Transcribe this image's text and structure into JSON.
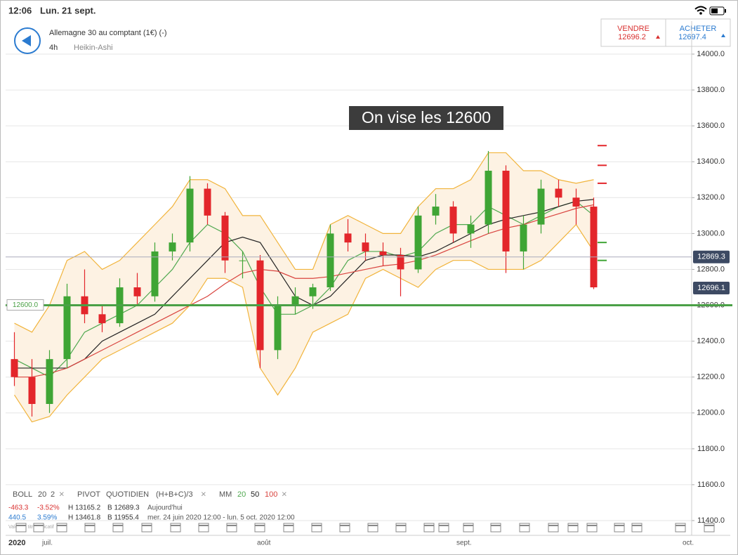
{
  "status_bar": {
    "time": "12:06",
    "date": "Lun. 21 sept."
  },
  "header": {
    "instrument": "Allemagne 30 au comptant (1€) (-)",
    "interval": "4h",
    "chart_style": "Heikin-Ashi"
  },
  "quote": {
    "sell_label": "VENDRE",
    "sell_price": "12696.2",
    "buy_label": "ACHETER",
    "buy_price": "12697.4"
  },
  "chart_data": {
    "type": "candlestick",
    "annotation": "On vise les 12600",
    "ylim": [
      11400,
      14000
    ],
    "yticks": [
      {
        "value": 11400,
        "label": "11400.0"
      },
      {
        "value": 11600,
        "label": "11600.0"
      },
      {
        "value": 11800,
        "label": "11800.0"
      },
      {
        "value": 12000,
        "label": "12000.0"
      },
      {
        "value": 12200,
        "label": "12200.0"
      },
      {
        "value": 12400,
        "label": "12400.0"
      },
      {
        "value": 12600,
        "label": "12600.0"
      },
      {
        "value": 12800,
        "label": "12800.0"
      },
      {
        "value": 13000,
        "label": "13000.0"
      },
      {
        "value": 13200,
        "label": "13200.0"
      },
      {
        "value": 13400,
        "label": "13400.0"
      },
      {
        "value": 13600,
        "label": "13600.0"
      },
      {
        "value": 13800,
        "label": "13800.0"
      },
      {
        "value": 14000,
        "label": "14000.0"
      }
    ],
    "grid": true,
    "up_color": "#3fa535",
    "down_color": "#e3262b",
    "open": [
      12300,
      12200,
      12050,
      12300,
      12650,
      12550,
      12500,
      12700,
      12650,
      12900,
      12950,
      13250,
      13100,
      12850,
      12850,
      12350,
      12600,
      12650,
      12700,
      13000,
      12950,
      12900,
      12880,
      12800,
      13100,
      13150,
      13000,
      13050,
      13350,
      12900,
      13050,
      13250,
      13200,
      13150
    ],
    "high": [
      12450,
      12300,
      12350,
      12720,
      12800,
      12600,
      12750,
      12780,
      12950,
      13000,
      13320,
      13280,
      13120,
      12900,
      12880,
      12650,
      12700,
      12720,
      13050,
      13080,
      13000,
      12950,
      12920,
      13150,
      13220,
      13180,
      13100,
      13460,
      13380,
      13100,
      13300,
      13300,
      13250,
      13200
    ],
    "low": [
      12150,
      11980,
      12000,
      12250,
      12500,
      12450,
      12480,
      12600,
      12620,
      12850,
      12900,
      13050,
      12780,
      12750,
      12250,
      12300,
      12550,
      12580,
      12680,
      12900,
      12850,
      12820,
      12650,
      12780,
      13050,
      12950,
      12920,
      13000,
      12780,
      12800,
      13000,
      13150,
      13050,
      12690
    ],
    "close": [
      12200,
      12050,
      12300,
      12650,
      12550,
      12500,
      12700,
      12650,
      12900,
      12950,
      13250,
      13100,
      12850,
      12850,
      12350,
      12600,
      12650,
      12700,
      13000,
      12950,
      12900,
      12880,
      12800,
      13100,
      13150,
      13000,
      13050,
      13350,
      12900,
      13050,
      13250,
      13200,
      13150,
      12700
    ],
    "bands": {
      "color": "#f1b43c",
      "fill": "#fdf2e3",
      "upper": [
        12500,
        12450,
        12600,
        12850,
        12900,
        12800,
        12850,
        12950,
        13050,
        13150,
        13300,
        13300,
        13250,
        13100,
        13100,
        12950,
        12800,
        12800,
        13050,
        13100,
        13050,
        13000,
        13000,
        13150,
        13250,
        13250,
        13300,
        13450,
        13450,
        13350,
        13350,
        13300,
        13280,
        13300
      ],
      "lower": [
        12100,
        11950,
        11980,
        12100,
        12200,
        12300,
        12350,
        12400,
        12450,
        12500,
        12600,
        12750,
        12750,
        12700,
        12250,
        12100,
        12250,
        12450,
        12500,
        12550,
        12750,
        12800,
        12750,
        12700,
        12800,
        12850,
        12850,
        12800,
        12800,
        12800,
        12850,
        12950,
        13050,
        12900
      ]
    },
    "series": [
      {
        "name": "20",
        "color": "#4fa84f",
        "values": [
          12300,
          12250,
          12200,
          12300,
          12450,
          12500,
          12550,
          12600,
          12700,
          12800,
          12950,
          13050,
          13000,
          12900,
          12700,
          12550,
          12550,
          12600,
          12700,
          12850,
          12900,
          12900,
          12870,
          12900,
          13000,
          13050,
          13050,
          13150,
          13100,
          13050,
          13100,
          13150,
          13180,
          13100
        ]
      },
      {
        "name": "50",
        "color": "#222222",
        "values": [
          12250,
          12250,
          12250,
          12250,
          12300,
          12400,
          12450,
          12500,
          12550,
          12650,
          12750,
          12850,
          12950,
          12980,
          12950,
          12800,
          12650,
          12600,
          12650,
          12750,
          12850,
          12880,
          12880,
          12870,
          12900,
          12950,
          13000,
          13050,
          13080,
          13100,
          13120,
          13150,
          13180,
          13190
        ]
      },
      {
        "name": "100",
        "color": "#d9443f",
        "values": [
          12200,
          12200,
          12220,
          12250,
          12300,
          12350,
          12400,
          12450,
          12500,
          12550,
          12600,
          12650,
          12720,
          12780,
          12800,
          12790,
          12750,
          12750,
          12760,
          12780,
          12800,
          12820,
          12830,
          12850,
          12880,
          12920,
          12960,
          13000,
          13030,
          13050,
          13080,
          13110,
          13140,
          13160
        ]
      }
    ],
    "pivot_resistances": [
      13490,
      13380,
      13280
    ],
    "pivot_supports": [
      12950,
      12850
    ],
    "target_line": {
      "value": 12600,
      "label": "12600.0",
      "color": "#4aa046"
    },
    "last_high_line": 12869.3,
    "last_price": 12696.1,
    "x_labels": [
      "2020",
      "juil.",
      "août",
      "sept.",
      "oct."
    ]
  },
  "indicators": {
    "boll": [
      "BOLL",
      "20",
      "2"
    ],
    "pivot": [
      "PIVOT",
      "QUOTIDIEN",
      "(H+B+C)/3"
    ],
    "mm": [
      "MM",
      "20",
      "50",
      "100"
    ],
    "today": [
      "-463.3",
      "-3.52%",
      "H 13165.2",
      "B 12689.3",
      "Aujourd'hui"
    ],
    "period": [
      "440.5",
      "3.59%",
      "H 13461.8",
      "B 11955.4",
      "mer. 24 juin 2020 12:00 - lun. 5 oct. 2020 12:00"
    ],
    "note": "Valeur à titre indicatif"
  }
}
